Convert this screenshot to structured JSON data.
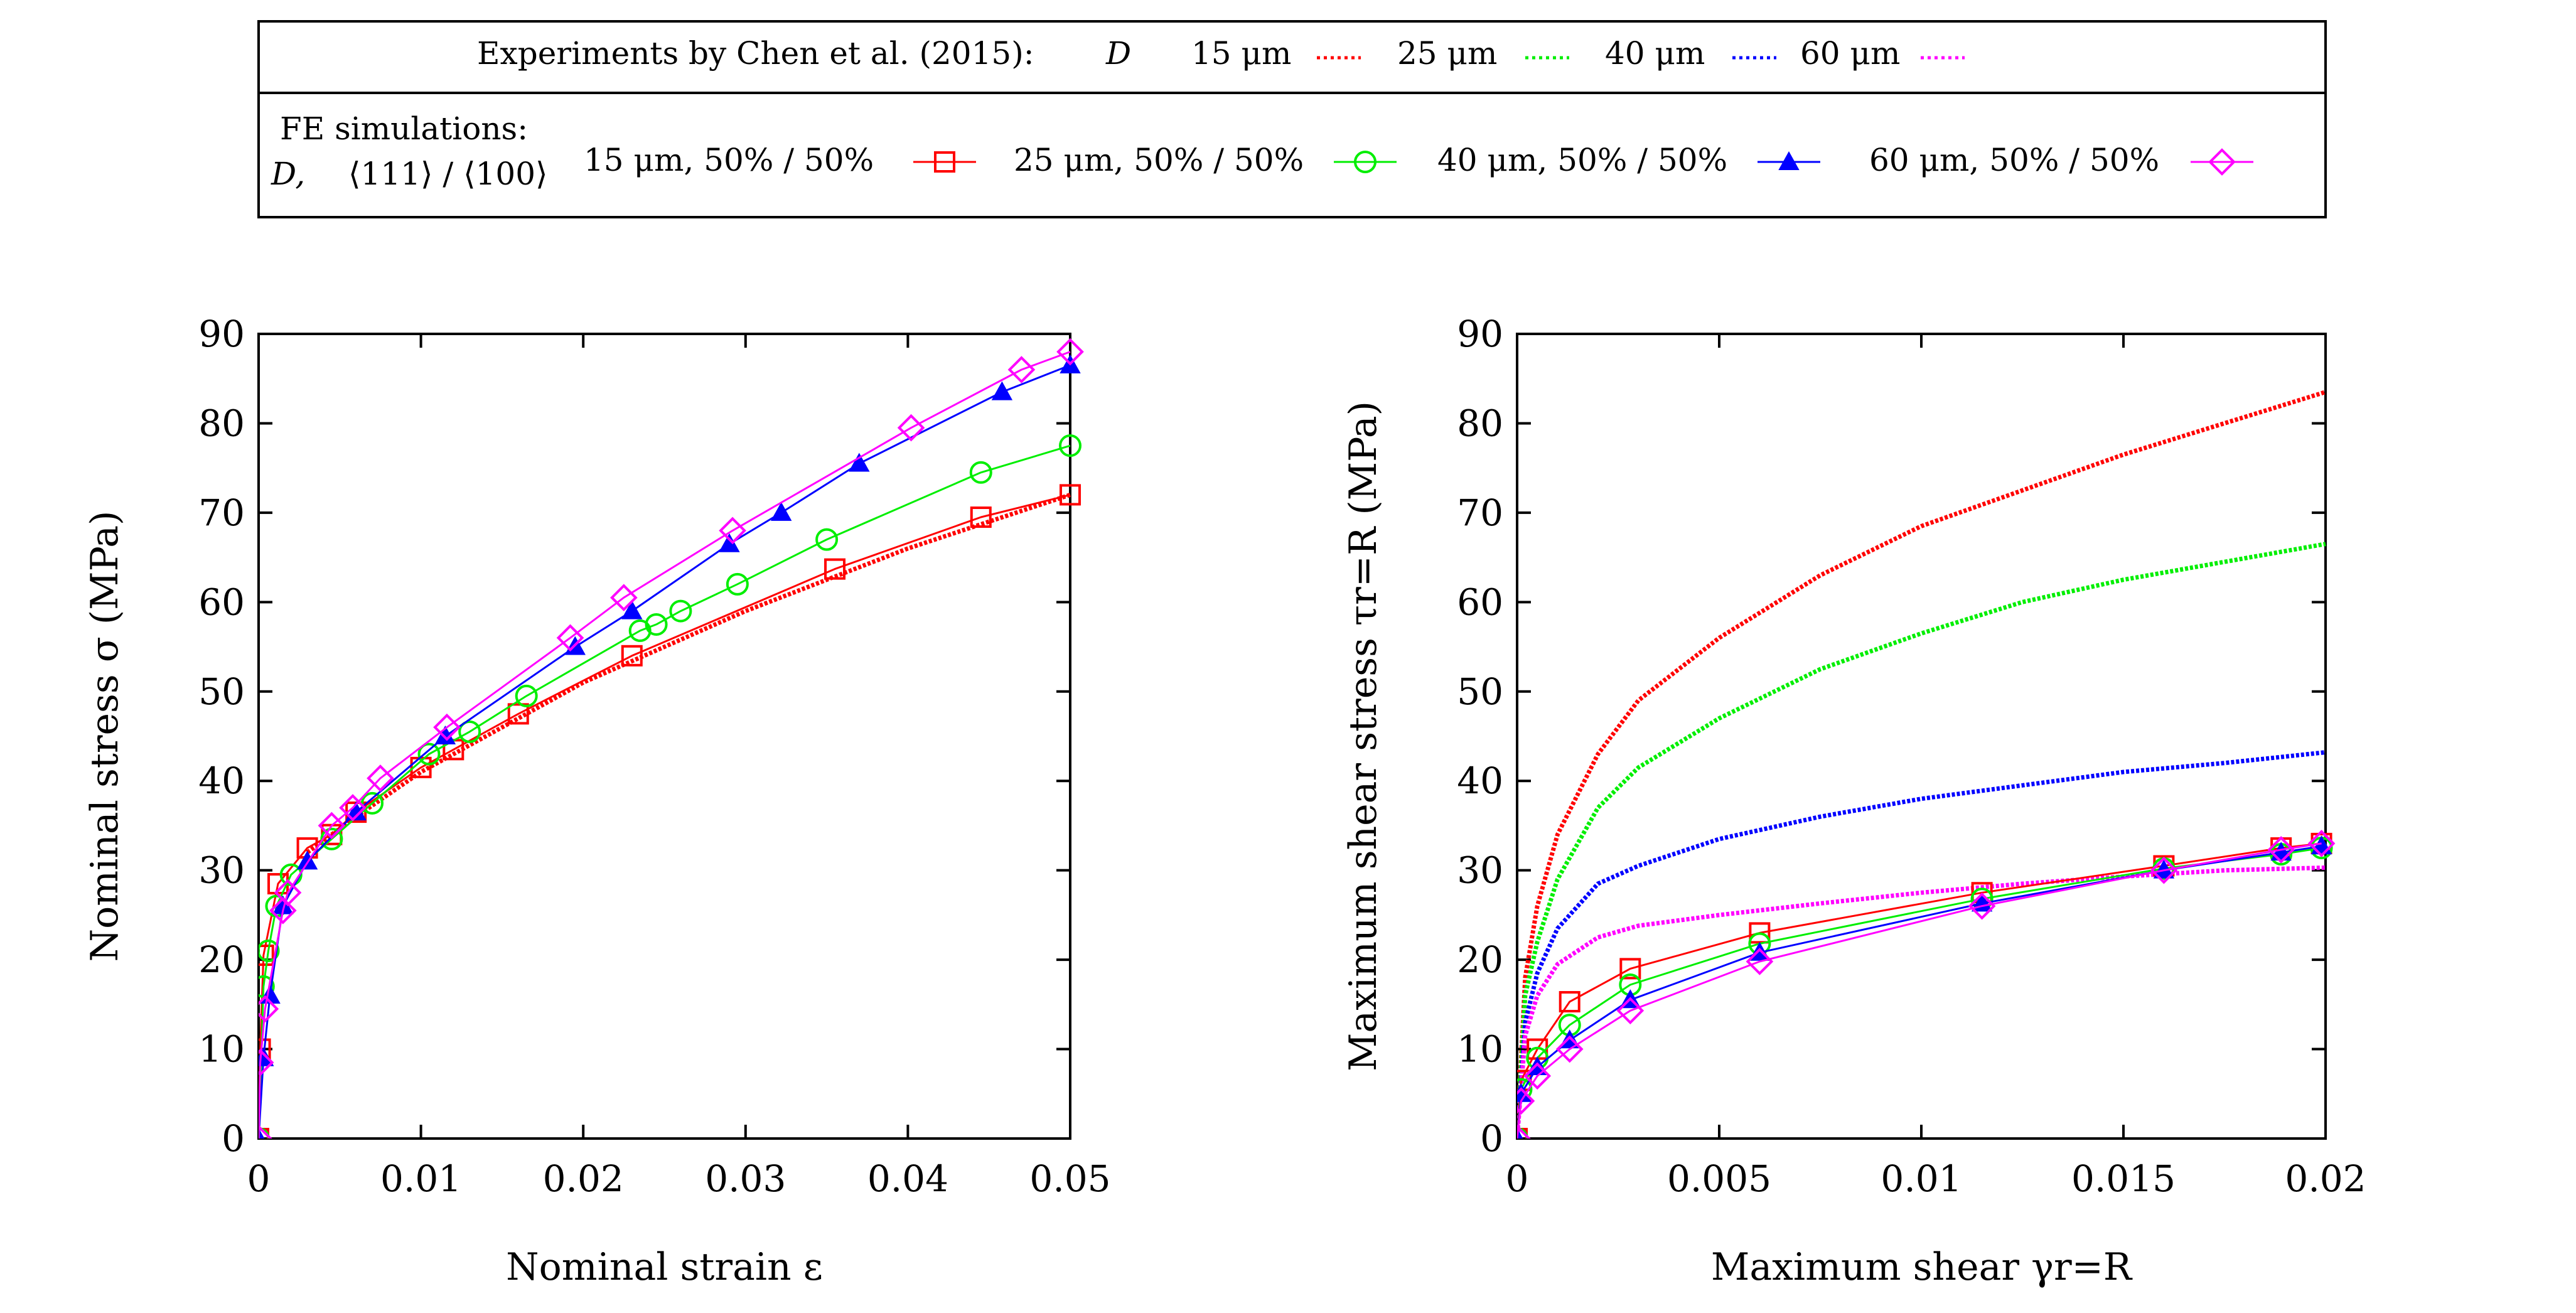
{
  "legend": {
    "exp_label": "Experiments by Chen et al. (2015):",
    "exp_var": "D",
    "fe_label_line1": "FE simulations:",
    "fe_label_line2": "D,",
    "fe_label_texture": "⟨111⟩ / ⟨100⟩",
    "exp_entries": [
      {
        "label": "15 μm",
        "color": "#ff0000"
      },
      {
        "label": "25 μm",
        "color": "#00ee00"
      },
      {
        "label": "40 μm",
        "color": "#0000ff"
      },
      {
        "label": "60 μm",
        "color": "#ff00ff"
      }
    ],
    "fe_entries": [
      {
        "label": "15 μm, 50% / 50%",
        "color": "#ff0000",
        "marker": "square"
      },
      {
        "label": "25 μm, 50% / 50%",
        "color": "#00ee00",
        "marker": "circle"
      },
      {
        "label": "40 μm, 50% / 50%",
        "color": "#0000ff",
        "marker": "triangle"
      },
      {
        "label": "60 μm, 50% / 50%",
        "color": "#ff00ff",
        "marker": "diamond"
      }
    ]
  },
  "chart_data": [
    {
      "type": "line",
      "title": "",
      "xlabel": "Nominal strain ε",
      "ylabel": "Nominal stress σ (MPa)",
      "xlim": [
        0,
        0.05
      ],
      "ylim": [
        0,
        90
      ],
      "xticks": [
        0,
        0.01,
        0.02,
        0.03,
        0.04,
        0.05
      ],
      "xtick_labels": [
        "0",
        "0.01",
        "0.02",
        "0.03",
        "0.04",
        "0.05"
      ],
      "yticks": [
        0,
        10,
        20,
        30,
        40,
        50,
        60,
        70,
        80,
        90
      ],
      "ytick_labels": [
        "0",
        "10",
        "20",
        "30",
        "40",
        "50",
        "60",
        "70",
        "80",
        "90"
      ],
      "experiments": [
        {
          "name": "15 μm",
          "color": "#ff0000",
          "x": [
            0.003,
            0.006,
            0.01,
            0.015,
            0.02,
            0.025,
            0.03,
            0.035,
            0.04,
            0.045,
            0.05
          ],
          "y": [
            32,
            36,
            41,
            46,
            51,
            55,
            59,
            62.5,
            66,
            69,
            72
          ]
        }
      ],
      "simulations": [
        {
          "name": "15 μm, 50% / 50%",
          "color": "#ff0000",
          "marker": "square",
          "x": [
            0,
            0.0001,
            0.0003,
            0.0012,
            0.003,
            0.0045,
            0.006,
            0.01,
            0.012,
            0.016,
            0.023,
            0.0355,
            0.0445,
            0.05
          ],
          "y": [
            0,
            10,
            20.5,
            28.5,
            32.5,
            34,
            36.5,
            41.5,
            43.5,
            47.5,
            54,
            63.7,
            69.5,
            72
          ]
        },
        {
          "name": "25 μm, 50% / 50%",
          "color": "#00ee00",
          "marker": "circle",
          "x": [
            0,
            0.0003,
            0.0006,
            0.0011,
            0.002,
            0.0045,
            0.007,
            0.0105,
            0.013,
            0.0165,
            0.0235,
            0.0245,
            0.026,
            0.0295,
            0.035,
            0.0445,
            0.05
          ],
          "y": [
            0,
            17,
            21,
            26,
            29.5,
            33.5,
            37.5,
            43,
            45.5,
            49.5,
            56.8,
            57.5,
            59,
            62,
            67,
            74.5,
            77.5
          ]
        },
        {
          "name": "40 μm, 50% / 50%",
          "color": "#0000ff",
          "marker": "triangle",
          "x": [
            0,
            0.0003,
            0.0007,
            0.0015,
            0.003,
            0.006,
            0.0115,
            0.0195,
            0.023,
            0.029,
            0.0322,
            0.037,
            0.0458,
            0.05
          ],
          "y": [
            0,
            9,
            16,
            26,
            31,
            36.5,
            45,
            55,
            59,
            66.5,
            70,
            75.5,
            83.5,
            86.5
          ]
        },
        {
          "name": "60 μm, 50% / 50%",
          "color": "#ff00ff",
          "marker": "diamond",
          "x": [
            0,
            0.0001,
            0.0004,
            0.0015,
            0.0018,
            0.0045,
            0.0058,
            0.0075,
            0.0116,
            0.0192,
            0.0225,
            0.0292,
            0.0402,
            0.047,
            0.05
          ],
          "y": [
            0,
            8.5,
            14.5,
            25.5,
            27.5,
            35,
            37,
            40.3,
            46,
            56,
            60.5,
            68,
            79.5,
            86,
            88
          ]
        }
      ]
    },
    {
      "type": "line",
      "title": "",
      "xlabel": "Maximum shear γr=R",
      "ylabel": "Maximum shear stress τr=R (MPa)",
      "xlim": [
        0,
        0.02
      ],
      "ylim": [
        0,
        90
      ],
      "xticks": [
        0,
        0.005,
        0.01,
        0.015,
        0.02
      ],
      "xtick_labels": [
        "0",
        "0.005",
        "0.01",
        "0.015",
        "0.02"
      ],
      "yticks": [
        0,
        10,
        20,
        30,
        40,
        50,
        60,
        70,
        80,
        90
      ],
      "ytick_labels": [
        "0",
        "10",
        "20",
        "30",
        "40",
        "50",
        "60",
        "70",
        "80",
        "90"
      ],
      "experiments": [
        {
          "name": "15 μm",
          "color": "#ff0000",
          "x": [
            0,
            0.0002,
            0.0005,
            0.001,
            0.002,
            0.003,
            0.005,
            0.0075,
            0.01,
            0.0125,
            0.015,
            0.0175,
            0.02
          ],
          "y": [
            0,
            18,
            26,
            34,
            43,
            49,
            56,
            63,
            68.5,
            72.5,
            76.5,
            80,
            83.5
          ]
        },
        {
          "name": "25 μm",
          "color": "#00ee00",
          "x": [
            0,
            0.0002,
            0.0005,
            0.001,
            0.002,
            0.003,
            0.005,
            0.0075,
            0.01,
            0.0125,
            0.015,
            0.0175,
            0.02
          ],
          "y": [
            0,
            16,
            22,
            29,
            37,
            41.5,
            47,
            52.5,
            56.5,
            60,
            62.5,
            64.5,
            66.5
          ]
        },
        {
          "name": "40 μm",
          "color": "#0000ff",
          "x": [
            0,
            0.0002,
            0.0005,
            0.001,
            0.002,
            0.003,
            0.005,
            0.0075,
            0.01,
            0.0125,
            0.015,
            0.0175,
            0.02
          ],
          "y": [
            0,
            13,
            18.5,
            23.5,
            28.5,
            30.5,
            33.5,
            36,
            38,
            39.5,
            41,
            42,
            43.2
          ]
        },
        {
          "name": "60 μm",
          "color": "#ff00ff",
          "x": [
            0,
            0.0002,
            0.0005,
            0.001,
            0.002,
            0.003,
            0.005,
            0.0075,
            0.01,
            0.0125,
            0.015,
            0.0175,
            0.02
          ],
          "y": [
            0,
            11.5,
            16,
            19.5,
            22.5,
            23.8,
            25,
            26.3,
            27.5,
            28.5,
            29.3,
            30,
            30.3
          ]
        }
      ],
      "simulations": [
        {
          "name": "15 μm, 50% / 50%",
          "color": "#ff0000",
          "marker": "square",
          "x": [
            0,
            0.0001,
            0.0005,
            0.0013,
            0.0028,
            0.006,
            0.0115,
            0.016,
            0.0189,
            0.0199
          ],
          "y": [
            0,
            6.5,
            10,
            15.3,
            19,
            23,
            27.5,
            30.5,
            32.5,
            33
          ]
        },
        {
          "name": "25 μm, 50% / 50%",
          "color": "#00ee00",
          "marker": "circle",
          "x": [
            0,
            0.0001,
            0.0005,
            0.0013,
            0.0028,
            0.006,
            0.0115,
            0.016,
            0.0189,
            0.0199
          ],
          "y": [
            0,
            5.5,
            9,
            12.7,
            17.2,
            21.8,
            26.8,
            30.2,
            31.8,
            32.5
          ]
        },
        {
          "name": "40 μm, 50% / 50%",
          "color": "#0000ff",
          "marker": "triangle",
          "x": [
            0,
            0.0001,
            0.0005,
            0.0013,
            0.0028,
            0.006,
            0.0115,
            0.016,
            0.0189,
            0.0199
          ],
          "y": [
            0,
            5,
            8,
            11,
            15.5,
            20.8,
            26.3,
            30,
            32,
            32.7
          ]
        },
        {
          "name": "60 μm, 50% / 50%",
          "color": "#ff00ff",
          "marker": "diamond",
          "x": [
            0,
            0.0001,
            0.0005,
            0.0013,
            0.0028,
            0.006,
            0.0115,
            0.016,
            0.0189,
            0.0199
          ],
          "y": [
            0,
            4.2,
            7,
            10,
            14.3,
            19.8,
            26,
            30,
            32.3,
            33
          ]
        }
      ]
    }
  ]
}
